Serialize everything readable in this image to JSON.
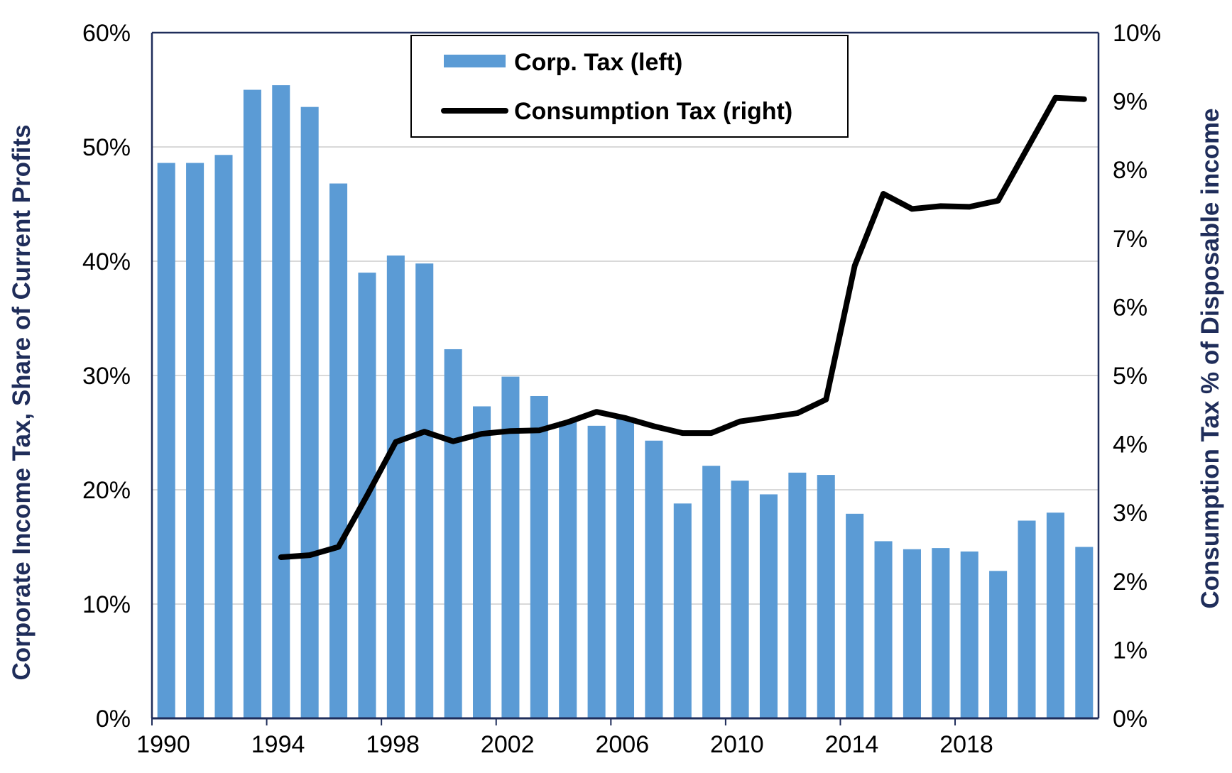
{
  "chart_data": {
    "type": "bar+line",
    "categories": [
      1990,
      1991,
      1992,
      1993,
      1994,
      1995,
      1996,
      1997,
      1998,
      1999,
      2000,
      2001,
      2002,
      2003,
      2004,
      2005,
      2006,
      2007,
      2008,
      2009,
      2010,
      2011,
      2012,
      2013,
      2014,
      2015,
      2016,
      2017,
      2018,
      2019,
      2020,
      2021,
      2022
    ],
    "x_tick_labels": [
      "1990",
      "1994",
      "1998",
      "2002",
      "2006",
      "2010",
      "2014",
      "2018"
    ],
    "series": [
      {
        "name": "Corp. Tax (left)",
        "type": "bar",
        "axis": "left",
        "color": "#5b9bd5",
        "values": [
          48.6,
          48.6,
          49.3,
          55.0,
          55.4,
          53.5,
          46.8,
          39.0,
          40.5,
          39.8,
          32.3,
          27.3,
          29.9,
          28.2,
          26.0,
          25.6,
          26.2,
          24.3,
          18.8,
          22.1,
          20.8,
          19.6,
          21.5,
          21.3,
          17.9,
          15.5,
          14.8,
          14.9,
          14.6,
          12.9,
          17.3,
          18.0,
          15.0
        ]
      },
      {
        "name": "Consumption Tax (right)",
        "type": "line",
        "axis": "right",
        "color": "#000000",
        "values": [
          null,
          null,
          null,
          null,
          2.35,
          2.38,
          2.5,
          3.25,
          4.03,
          4.18,
          4.04,
          4.15,
          4.19,
          4.2,
          4.32,
          4.47,
          4.38,
          4.26,
          4.16,
          4.16,
          4.33,
          4.39,
          4.45,
          4.65,
          6.6,
          7.65,
          7.43,
          7.47,
          7.46,
          7.55,
          8.3,
          9.05,
          9.03
        ]
      }
    ],
    "y_left": {
      "label": "Corporate Income Tax, Share of Current Profits",
      "min": 0,
      "max": 60,
      "step": 10,
      "tick_suffix": "%"
    },
    "y_right": {
      "label": "Consumption Tax % of Disposable income",
      "min": 0,
      "max": 10,
      "step": 1,
      "tick_suffix": "%"
    },
    "grid": true,
    "legend_position": "top-center",
    "colors": {
      "bar": "#5b9bd5",
      "line": "#000000",
      "axis": "#1f2d5a",
      "grid": "#d9d9d9"
    }
  }
}
